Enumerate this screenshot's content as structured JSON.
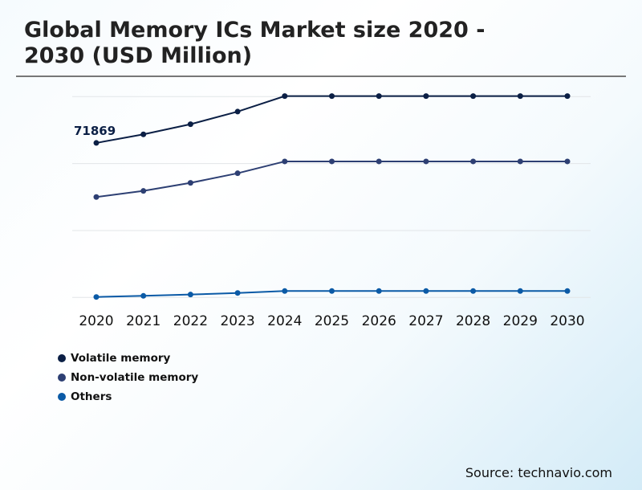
{
  "title": "Global Memory ICs Market size 2020 - 2030 (USD Million)",
  "source": "Source: technavio.com",
  "chart_data": {
    "type": "line",
    "title": "Global Memory ICs Market size 2020 - 2030 (USD Million)",
    "xlabel": "",
    "ylabel": "",
    "ylim": [
      0,
      93400
    ],
    "grid": true,
    "gridlines": [
      0,
      31130,
      62270,
      93400
    ],
    "legend_position": "bottom-left",
    "categories": [
      "2020",
      "2021",
      "2022",
      "2023",
      "2024",
      "2025",
      "2026",
      "2027",
      "2028",
      "2029",
      "2030"
    ],
    "series": [
      {
        "name": "Volatile memory",
        "color": "#0b1f45",
        "values": [
          71869,
          75860,
          80570,
          86440,
          93650,
          93650,
          93650,
          93650,
          93650,
          93650,
          93650
        ]
      },
      {
        "name": "Non-volatile memory",
        "color": "#2d3f73",
        "values": [
          46710,
          49550,
          53290,
          57770,
          63270,
          63270,
          63270,
          63270,
          63270,
          63270,
          63270
        ]
      },
      {
        "name": "Others",
        "color": "#0b5aa6",
        "values": [
          220,
          750,
          1350,
          2090,
          2990,
          2990,
          2990,
          2990,
          2990,
          2990,
          2990
        ]
      }
    ],
    "annotations": [
      {
        "series": "Volatile memory",
        "category": "2020",
        "text": "71869"
      }
    ]
  }
}
